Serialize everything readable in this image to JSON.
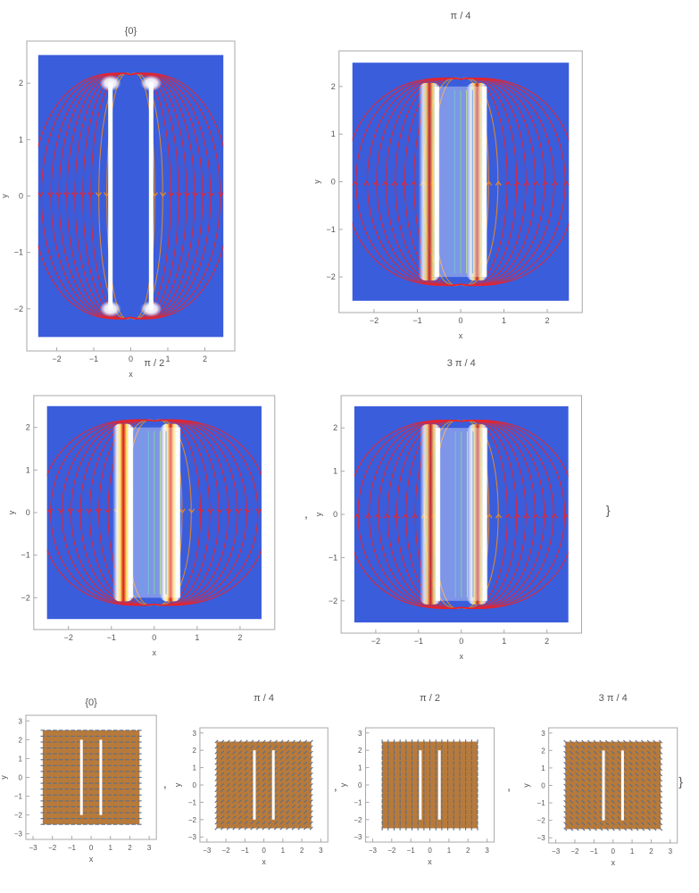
{
  "chart_data": [
    {
      "type": "heatmap",
      "kind": "stream",
      "title": "{0}",
      "xlabel": "x",
      "ylabel": "y",
      "xlim": [
        -2.5,
        2.5
      ],
      "ylim": [
        -2.5,
        2.5
      ],
      "xticks": [
        "−2",
        "−1",
        "0",
        "1",
        "2"
      ],
      "yticks": [
        "−2",
        "−1",
        "0",
        "1",
        "2"
      ],
      "plates": [
        {
          "x": -0.55,
          "y_range": [
            -2,
            2
          ]
        },
        {
          "x": 0.55,
          "y_range": [
            -2,
            2
          ]
        }
      ],
      "phase": "0"
    },
    {
      "type": "heatmap",
      "kind": "stream",
      "title": "π / 4",
      "xlabel": "x",
      "ylabel": "y",
      "xlim": [
        -2.5,
        2.5
      ],
      "ylim": [
        -2.5,
        2.5
      ],
      "xticks": [
        "−2",
        "−1",
        "0",
        "1",
        "2"
      ],
      "yticks": [
        "−2",
        "−1",
        "0",
        "1",
        "2"
      ],
      "plates": [
        {
          "x": -0.55,
          "y_range": [
            -2,
            2
          ]
        },
        {
          "x": 0.55,
          "y_range": [
            -2,
            2
          ]
        }
      ],
      "phase": "π/4"
    },
    {
      "type": "heatmap",
      "kind": "stream",
      "title": "π / 2",
      "xlabel": "x",
      "ylabel": "y",
      "xlim": [
        -2.5,
        2.5
      ],
      "ylim": [
        -2.5,
        2.5
      ],
      "xticks": [
        "−2",
        "−1",
        "0",
        "1",
        "2"
      ],
      "yticks": [
        "−2",
        "−1",
        "0",
        "1",
        "2"
      ],
      "plates": [
        {
          "x": -0.55,
          "y_range": [
            -2,
            2
          ]
        },
        {
          "x": 0.55,
          "y_range": [
            -2,
            2
          ]
        }
      ],
      "phase": "π/2"
    },
    {
      "type": "heatmap",
      "kind": "stream",
      "title": "3 π / 4",
      "xlabel": "x",
      "ylabel": "y",
      "xlim": [
        -2.5,
        2.5
      ],
      "ylim": [
        -2.5,
        2.5
      ],
      "xticks": [
        "−2",
        "−1",
        "0",
        "1",
        "2"
      ],
      "yticks": [
        "−2",
        "−1",
        "0",
        "1",
        "2"
      ],
      "plates": [
        {
          "x": -0.55,
          "y_range": [
            -2,
            2
          ]
        },
        {
          "x": 0.55,
          "y_range": [
            -2,
            2
          ]
        }
      ],
      "phase": "3π/4"
    },
    {
      "type": "heatmap",
      "kind": "vector",
      "title": "{0}",
      "xlabel": "x",
      "ylabel": "y",
      "xlim": [
        -3,
        3
      ],
      "ylim": [
        -3,
        3
      ],
      "xticks": [
        "−3",
        "−2",
        "−1",
        "0",
        "1",
        "2",
        "3"
      ],
      "yticks": [
        "−3",
        "−2",
        "−1",
        "0",
        "1",
        "2",
        "3"
      ],
      "angle_deg": 0
    },
    {
      "type": "heatmap",
      "kind": "vector",
      "title": "π / 4",
      "xlabel": "x",
      "ylabel": "y",
      "xlim": [
        -3,
        3
      ],
      "ylim": [
        -3,
        3
      ],
      "xticks": [
        "−3",
        "−2",
        "−1",
        "0",
        "1",
        "2",
        "3"
      ],
      "yticks": [
        "−3",
        "−2",
        "−1",
        "0",
        "1",
        "2",
        "3"
      ],
      "angle_deg": 45
    },
    {
      "type": "heatmap",
      "kind": "vector",
      "title": "π / 2",
      "xlabel": "x",
      "ylabel": "y",
      "xlim": [
        -3,
        3
      ],
      "ylim": [
        -3,
        3
      ],
      "xticks": [
        "−3",
        "−2",
        "−1",
        "0",
        "1",
        "2",
        "3"
      ],
      "yticks": [
        "−3",
        "−2",
        "−1",
        "0",
        "1",
        "2",
        "3"
      ],
      "angle_deg": 90
    },
    {
      "type": "heatmap",
      "kind": "vector",
      "title": "3 π / 4",
      "xlabel": "x",
      "ylabel": "y",
      "xlim": [
        -3,
        3
      ],
      "ylim": [
        -3,
        3
      ],
      "xticks": [
        "−3",
        "−2",
        "−1",
        "0",
        "1",
        "2",
        "3"
      ],
      "yticks": [
        "−3",
        "−2",
        "−1",
        "0",
        "1",
        "2",
        "3"
      ],
      "angle_deg": 135
    }
  ],
  "separators": {
    "comma": ",",
    "close_brace": "}"
  },
  "colors": {
    "field_background": "#3a5ddc",
    "vector_background": "#b87a3a",
    "arrow_gray": "#5a6f8c",
    "plate": "#ffffff",
    "streamline_outer": "#e8242a",
    "streamline_mid": "#f08a1c",
    "streamline_inner": "#3ec63e",
    "streamline_core": "#1f6fe0",
    "hot_core": "#d81818"
  }
}
